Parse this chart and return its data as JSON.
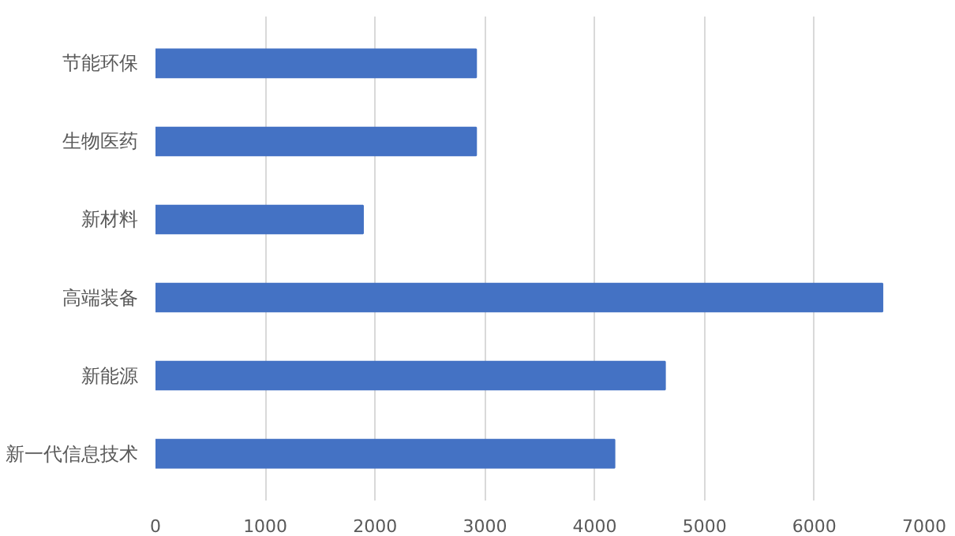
{
  "chart_data": {
    "type": "bar",
    "orientation": "horizontal",
    "categories": [
      "节能环保",
      "生物医药",
      "新材料",
      "高端装备",
      "新能源",
      "新一代信息技术"
    ],
    "values": [
      2920,
      2920,
      1890,
      6620,
      4640,
      4180
    ],
    "color": "#4472c4",
    "xlim": [
      0,
      7000
    ],
    "xticks": [
      0,
      1000,
      2000,
      3000,
      4000,
      5000,
      6000,
      7000
    ],
    "grid": "x"
  }
}
